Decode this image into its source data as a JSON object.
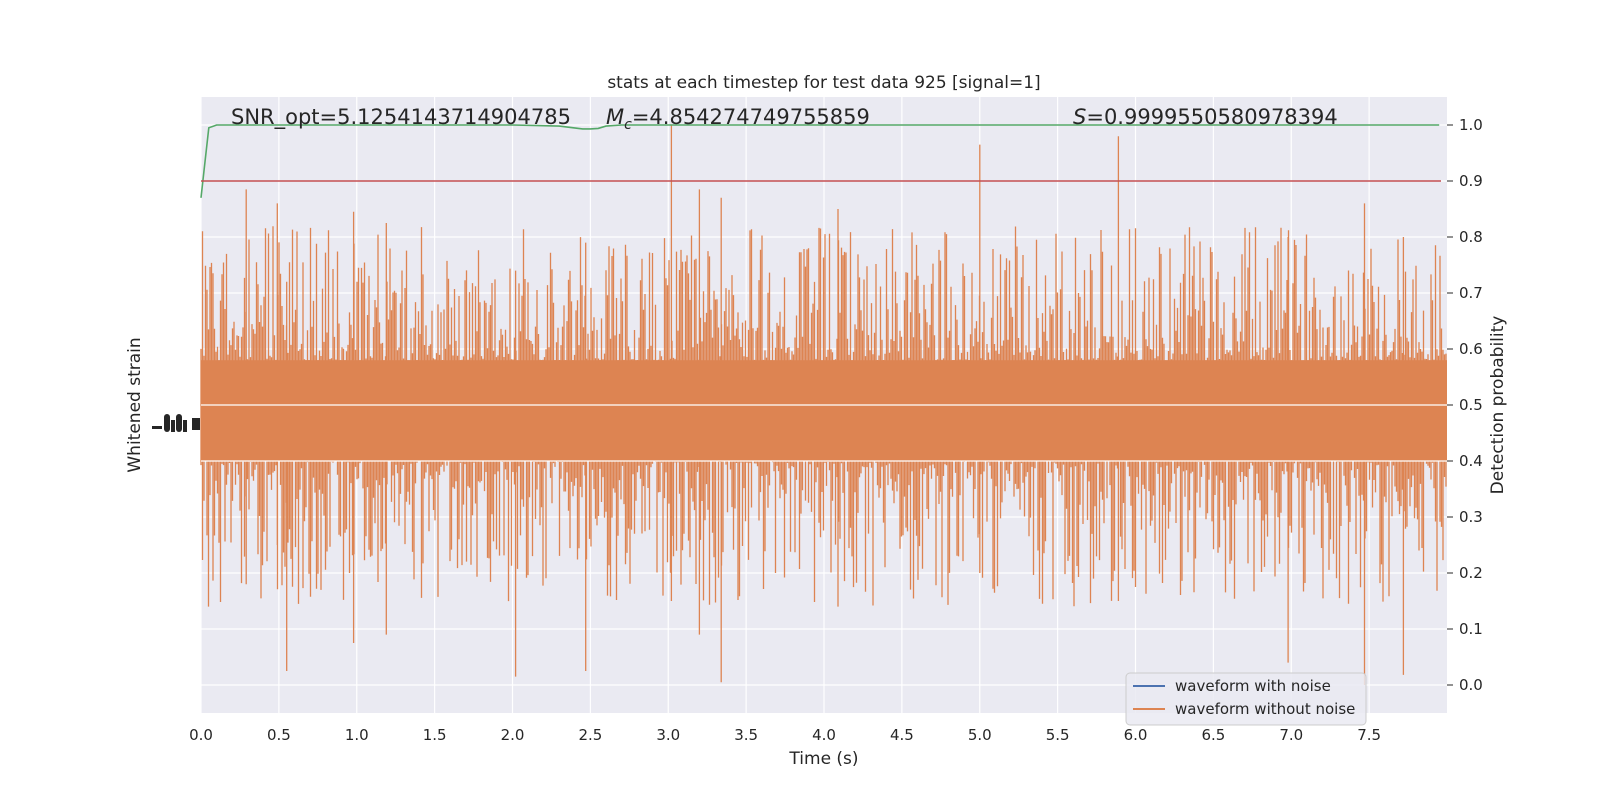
{
  "chart_data": {
    "type": "line",
    "title": "stats at each timestep for test data 925 [signal=1]",
    "xlabel": "Time (s)",
    "ylabel_left": "Whitened strain",
    "ylabel_right": "Detection probability",
    "xlim": [
      0.0,
      8.0
    ],
    "ylim_right": [
      -0.05,
      1.05
    ],
    "x_ticks": [
      "0.0",
      "0.5",
      "1.0",
      "1.5",
      "2.0",
      "2.5",
      "3.0",
      "3.5",
      "4.0",
      "4.5",
      "5.0",
      "5.5",
      "6.0",
      "6.5",
      "7.0",
      "7.5"
    ],
    "y_ticks_right": [
      "0.0",
      "0.1",
      "0.2",
      "0.3",
      "0.4",
      "0.5",
      "0.6",
      "0.7",
      "0.8",
      "0.9",
      "1.0"
    ],
    "grid": true,
    "legend_position": "lower-right",
    "annotations": {
      "snr": "SNR_opt=5.1254143714904785",
      "mc_symbol": "M",
      "mc_sub": "c",
      "mc_value": "=4.854274749755859",
      "s_symbol": "S",
      "s_value": "=0.9999550580978394"
    },
    "threshold": 0.9,
    "series": [
      {
        "name": "waveform with noise",
        "color": "#4c72b0"
      },
      {
        "name": "waveform without noise",
        "color": "#dd8452"
      }
    ],
    "detection_probability": {
      "color": "#55a868",
      "x": [
        0.0,
        0.02,
        0.05,
        0.1,
        0.2,
        1.0,
        2.0,
        2.3,
        2.45,
        2.5,
        2.55,
        2.6,
        2.7,
        3.0,
        7.95
      ],
      "y": [
        0.87,
        0.92,
        0.995,
        1.0,
        1.0,
        1.0,
        1.0,
        0.998,
        0.993,
        0.993,
        0.994,
        0.998,
        1.0,
        1.0,
        1.0
      ]
    },
    "threshold_color": "#c44e52",
    "waveform_envelope": {
      "band_upper": 0.58,
      "band_lower": 0.4,
      "peak_samples": [
        {
          "t": 0.29,
          "hi": 0.885,
          "lo": 0.18
        },
        {
          "t": 0.49,
          "hi": 0.86,
          "lo": 0.25
        },
        {
          "t": 0.55,
          "hi": 0.72,
          "lo": 0.025
        },
        {
          "t": 0.98,
          "hi": 0.845,
          "lo": 0.075
        },
        {
          "t": 1.19,
          "hi": 0.825,
          "lo": 0.09
        },
        {
          "t": 2.02,
          "hi": 0.74,
          "lo": 0.015
        },
        {
          "t": 2.47,
          "hi": 0.79,
          "lo": 0.025
        },
        {
          "t": 3.02,
          "hi": 1.0,
          "lo": 0.15
        },
        {
          "t": 3.2,
          "hi": 0.885,
          "lo": 0.09
        },
        {
          "t": 3.34,
          "hi": 0.87,
          "lo": 0.005
        },
        {
          "t": 4.09,
          "hi": 0.85,
          "lo": 0.14
        },
        {
          "t": 5.0,
          "hi": 0.965,
          "lo": 0.2
        },
        {
          "t": 5.89,
          "hi": 0.98,
          "lo": 0.15
        },
        {
          "t": 6.98,
          "hi": 0.8,
          "lo": 0.04
        },
        {
          "t": 7.47,
          "hi": 0.86,
          "lo": 0.0
        },
        {
          "t": 7.72,
          "hi": 0.8,
          "lo": 0.018
        }
      ]
    }
  }
}
